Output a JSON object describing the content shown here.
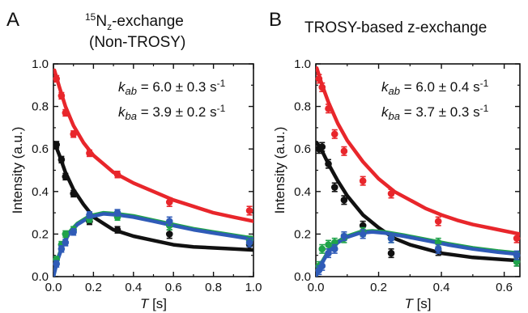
{
  "figure": {
    "panels": [
      {
        "letter": "A",
        "title_sup": "15",
        "title_main": "N",
        "title_sub": "z",
        "title_rest": "-exchange",
        "title_line2": "(Non-TROSY)"
      },
      {
        "letter": "B",
        "title": "TROSY-based z-exchange"
      }
    ],
    "rate_labels": [
      [
        {
          "k": "k",
          "sub": "ab",
          "text": " = 6.0 ± 0.3 s",
          "sup": "-1"
        },
        {
          "k": "k",
          "sub": "ba",
          "text": " = 3.9 ± 0.2 s",
          "sup": "-1"
        }
      ],
      [
        {
          "k": "k",
          "sub": "ab",
          "text": " = 6.0 ± 0.4 s",
          "sup": "-1"
        },
        {
          "k": "k",
          "sub": "ba",
          "text": " = 3.7 ± 0.3 s",
          "sup": "-1"
        }
      ]
    ]
  },
  "chart_data": [
    {
      "type": "scatter",
      "xlabel_italic": "T",
      "xlabel_unit": " [s]",
      "ylabel": "Intensity (a.u.)",
      "xlim": [
        0,
        1.0
      ],
      "ylim": [
        0,
        1.0
      ],
      "xticks": [
        "0.0",
        "0.2",
        "0.4",
        "0.6",
        "0.8",
        "1.0"
      ],
      "yticks": [
        "0.0",
        "0.2",
        "0.4",
        "0.6",
        "0.8",
        "1.0"
      ],
      "grid": false,
      "series": [
        {
          "color": "#e8262b",
          "points": [
            [
              0.015,
              0.93
            ],
            [
              0.04,
              0.85
            ],
            [
              0.06,
              0.77
            ],
            [
              0.1,
              0.67
            ],
            [
              0.18,
              0.58
            ],
            [
              0.32,
              0.48
            ],
            [
              0.58,
              0.35
            ],
            [
              0.98,
              0.31
            ]
          ],
          "errors": [
            0.015,
            0.015,
            0.015,
            0.015,
            0.015,
            0.015,
            0.02,
            0.02
          ],
          "fit": [
            [
              0.005,
              0.97
            ],
            [
              0.03,
              0.89
            ],
            [
              0.06,
              0.8
            ],
            [
              0.1,
              0.71
            ],
            [
              0.15,
              0.63
            ],
            [
              0.2,
              0.57
            ],
            [
              0.3,
              0.49
            ],
            [
              0.4,
              0.44
            ],
            [
              0.5,
              0.4
            ],
            [
              0.6,
              0.36
            ],
            [
              0.7,
              0.33
            ],
            [
              0.8,
              0.3
            ],
            [
              0.9,
              0.28
            ],
            [
              1.0,
              0.26
            ]
          ]
        },
        {
          "color": "#111111",
          "points": [
            [
              0.015,
              0.62
            ],
            [
              0.04,
              0.55
            ],
            [
              0.06,
              0.47
            ],
            [
              0.1,
              0.39
            ],
            [
              0.18,
              0.26
            ],
            [
              0.32,
              0.22
            ],
            [
              0.58,
              0.2
            ],
            [
              0.98,
              0.15
            ]
          ],
          "errors": [
            0.015,
            0.015,
            0.015,
            0.015,
            0.015,
            0.015,
            0.02,
            0.02
          ],
          "fit": [
            [
              0.005,
              0.63
            ],
            [
              0.03,
              0.57
            ],
            [
              0.06,
              0.49
            ],
            [
              0.1,
              0.41
            ],
            [
              0.15,
              0.34
            ],
            [
              0.2,
              0.28
            ],
            [
              0.3,
              0.22
            ],
            [
              0.4,
              0.19
            ],
            [
              0.5,
              0.17
            ],
            [
              0.6,
              0.15
            ],
            [
              0.7,
              0.14
            ],
            [
              0.8,
              0.135
            ],
            [
              0.9,
              0.13
            ],
            [
              1.0,
              0.125
            ]
          ]
        },
        {
          "color": "#1fa34a",
          "points": [
            [
              0.015,
              0.08
            ],
            [
              0.04,
              0.15
            ],
            [
              0.06,
              0.2
            ],
            [
              0.1,
              0.22
            ],
            [
              0.18,
              0.27
            ],
            [
              0.32,
              0.28
            ],
            [
              0.58,
              0.24
            ],
            [
              0.98,
              0.17
            ]
          ],
          "errors": [
            0.015,
            0.015,
            0.015,
            0.015,
            0.015,
            0.015,
            0.02,
            0.02
          ],
          "fit": [
            [
              0.0,
              0.0
            ],
            [
              0.02,
              0.08
            ],
            [
              0.05,
              0.16
            ],
            [
              0.08,
              0.21
            ],
            [
              0.12,
              0.25
            ],
            [
              0.18,
              0.285
            ],
            [
              0.25,
              0.3
            ],
            [
              0.32,
              0.295
            ],
            [
              0.4,
              0.285
            ],
            [
              0.5,
              0.265
            ],
            [
              0.6,
              0.245
            ],
            [
              0.7,
              0.225
            ],
            [
              0.8,
              0.21
            ],
            [
              0.9,
              0.195
            ],
            [
              1.0,
              0.18
            ]
          ]
        },
        {
          "color": "#2f5bb7",
          "points": [
            [
              0.015,
              0.06
            ],
            [
              0.04,
              0.13
            ],
            [
              0.06,
              0.16
            ],
            [
              0.1,
              0.21
            ],
            [
              0.18,
              0.29
            ],
            [
              0.32,
              0.3
            ],
            [
              0.58,
              0.26
            ],
            [
              0.98,
              0.16
            ]
          ],
          "errors": [
            0.015,
            0.015,
            0.015,
            0.015,
            0.015,
            0.015,
            0.02,
            0.02
          ],
          "fit": [
            [
              0.0,
              0.0
            ],
            [
              0.02,
              0.075
            ],
            [
              0.05,
              0.155
            ],
            [
              0.08,
              0.205
            ],
            [
              0.12,
              0.245
            ],
            [
              0.18,
              0.28
            ],
            [
              0.25,
              0.295
            ],
            [
              0.32,
              0.29
            ],
            [
              0.4,
              0.28
            ],
            [
              0.5,
              0.26
            ],
            [
              0.6,
              0.24
            ],
            [
              0.7,
              0.22
            ],
            [
              0.8,
              0.205
            ],
            [
              0.9,
              0.19
            ],
            [
              1.0,
              0.175
            ]
          ]
        }
      ]
    },
    {
      "type": "scatter",
      "xlabel_italic": "T",
      "xlabel_unit": " [s]",
      "ylabel": "Intensity (a.u.)",
      "xlim": [
        0,
        0.65
      ],
      "ylim": [
        0,
        1.0
      ],
      "xticks": [
        "0.0",
        "0.2",
        "0.4",
        "0.6"
      ],
      "yticks": [
        "0.0",
        "0.2",
        "0.4",
        "0.6",
        "0.8",
        "1.0"
      ],
      "grid": false,
      "series": [
        {
          "color": "#e8262b",
          "points": [
            [
              0.01,
              0.93
            ],
            [
              0.02,
              0.89
            ],
            [
              0.04,
              0.79
            ],
            [
              0.06,
              0.67
            ],
            [
              0.09,
              0.59
            ],
            [
              0.15,
              0.45
            ],
            [
              0.24,
              0.39
            ],
            [
              0.39,
              0.26
            ],
            [
              0.64,
              0.18
            ]
          ],
          "errors": [
            0.02,
            0.02,
            0.02,
            0.02,
            0.02,
            0.02,
            0.02,
            0.02,
            0.02
          ],
          "fit": [
            [
              0.003,
              0.98
            ],
            [
              0.02,
              0.9
            ],
            [
              0.04,
              0.82
            ],
            [
              0.07,
              0.72
            ],
            [
              0.1,
              0.64
            ],
            [
              0.15,
              0.54
            ],
            [
              0.2,
              0.46
            ],
            [
              0.25,
              0.4
            ],
            [
              0.3,
              0.36
            ],
            [
              0.35,
              0.32
            ],
            [
              0.4,
              0.29
            ],
            [
              0.45,
              0.265
            ],
            [
              0.5,
              0.245
            ],
            [
              0.55,
              0.23
            ],
            [
              0.6,
              0.215
            ],
            [
              0.65,
              0.2
            ]
          ]
        },
        {
          "color": "#111111",
          "points": [
            [
              0.01,
              0.6
            ],
            [
              0.02,
              0.61
            ],
            [
              0.04,
              0.53
            ],
            [
              0.06,
              0.42
            ],
            [
              0.09,
              0.36
            ],
            [
              0.15,
              0.24
            ],
            [
              0.24,
              0.11
            ],
            [
              0.39,
              0.12
            ],
            [
              0.64,
              0.07
            ]
          ],
          "errors": [
            0.02,
            0.02,
            0.02,
            0.02,
            0.02,
            0.02,
            0.02,
            0.02,
            0.02
          ],
          "fit": [
            [
              0.003,
              0.63
            ],
            [
              0.02,
              0.59
            ],
            [
              0.04,
              0.53
            ],
            [
              0.07,
              0.45
            ],
            [
              0.1,
              0.38
            ],
            [
              0.15,
              0.29
            ],
            [
              0.2,
              0.23
            ],
            [
              0.25,
              0.18
            ],
            [
              0.3,
              0.15
            ],
            [
              0.35,
              0.13
            ],
            [
              0.4,
              0.11
            ],
            [
              0.45,
              0.1
            ],
            [
              0.5,
              0.09
            ],
            [
              0.55,
              0.085
            ],
            [
              0.6,
              0.08
            ],
            [
              0.65,
              0.075
            ]
          ]
        },
        {
          "color": "#1fa34a",
          "points": [
            [
              0.01,
              0.05
            ],
            [
              0.02,
              0.13
            ],
            [
              0.04,
              0.15
            ],
            [
              0.06,
              0.16
            ],
            [
              0.09,
              0.18
            ],
            [
              0.15,
              0.21
            ],
            [
              0.24,
              0.18
            ],
            [
              0.39,
              0.16
            ],
            [
              0.64,
              0.07
            ]
          ],
          "errors": [
            0.02,
            0.02,
            0.02,
            0.02,
            0.02,
            0.02,
            0.02,
            0.02,
            0.02
          ],
          "fit": [
            [
              0.0,
              0.0
            ],
            [
              0.02,
              0.07
            ],
            [
              0.04,
              0.12
            ],
            [
              0.07,
              0.165
            ],
            [
              0.1,
              0.19
            ],
            [
              0.14,
              0.21
            ],
            [
              0.18,
              0.215
            ],
            [
              0.22,
              0.21
            ],
            [
              0.28,
              0.195
            ],
            [
              0.35,
              0.175
            ],
            [
              0.42,
              0.155
            ],
            [
              0.5,
              0.135
            ],
            [
              0.58,
              0.12
            ],
            [
              0.65,
              0.11
            ]
          ]
        },
        {
          "color": "#2f5bb7",
          "points": [
            [
              0.01,
              0.03
            ],
            [
              0.02,
              0.05
            ],
            [
              0.04,
              0.11
            ],
            [
              0.06,
              0.13
            ],
            [
              0.09,
              0.19
            ],
            [
              0.15,
              0.2
            ],
            [
              0.24,
              0.18
            ],
            [
              0.39,
              0.13
            ],
            [
              0.64,
              0.1
            ]
          ],
          "errors": [
            0.02,
            0.02,
            0.02,
            0.02,
            0.02,
            0.02,
            0.02,
            0.02,
            0.02
          ],
          "fit": [
            [
              0.0,
              0.0
            ],
            [
              0.02,
              0.065
            ],
            [
              0.04,
              0.115
            ],
            [
              0.07,
              0.16
            ],
            [
              0.1,
              0.185
            ],
            [
              0.14,
              0.205
            ],
            [
              0.18,
              0.21
            ],
            [
              0.22,
              0.205
            ],
            [
              0.28,
              0.19
            ],
            [
              0.35,
              0.17
            ],
            [
              0.42,
              0.15
            ],
            [
              0.5,
              0.13
            ],
            [
              0.58,
              0.115
            ],
            [
              0.65,
              0.105
            ]
          ]
        }
      ]
    }
  ]
}
